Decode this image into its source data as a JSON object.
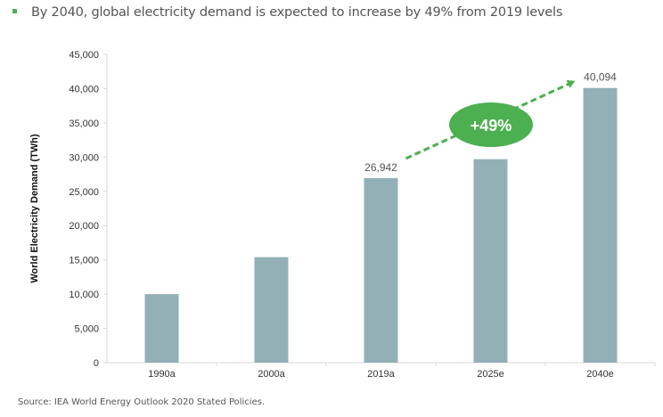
{
  "headline": "By 2040, global electricity demand is expected to increase by 49% from 2019 levels",
  "source": "Source: IEA World Energy Outlook 2020 Stated Policies.",
  "chart_data": {
    "type": "bar",
    "title": "",
    "xlabel": "",
    "ylabel": "World Electricity Demand (TWh)",
    "ylim": [
      0,
      45000
    ],
    "yticks": [
      0,
      5000,
      10000,
      15000,
      20000,
      25000,
      30000,
      35000,
      40000,
      45000
    ],
    "ytick_labels": [
      "0",
      "5,000",
      "10,000",
      "15,000",
      "20,000",
      "25,000",
      "30,000",
      "35,000",
      "40,000",
      "45,000"
    ],
    "categories": [
      "1990a",
      "2000a",
      "2019a",
      "2025e",
      "2040e"
    ],
    "values": [
      10000,
      15400,
      26942,
      29700,
      40094
    ],
    "data_labels": {
      "2019a": "26,942",
      "2040e": "40,094"
    },
    "annotation": {
      "text": "+49%",
      "from": "2019a",
      "to": "2040e"
    },
    "bar_color": "#93b0b7",
    "accent_color": "#4caf50",
    "grid": false
  }
}
